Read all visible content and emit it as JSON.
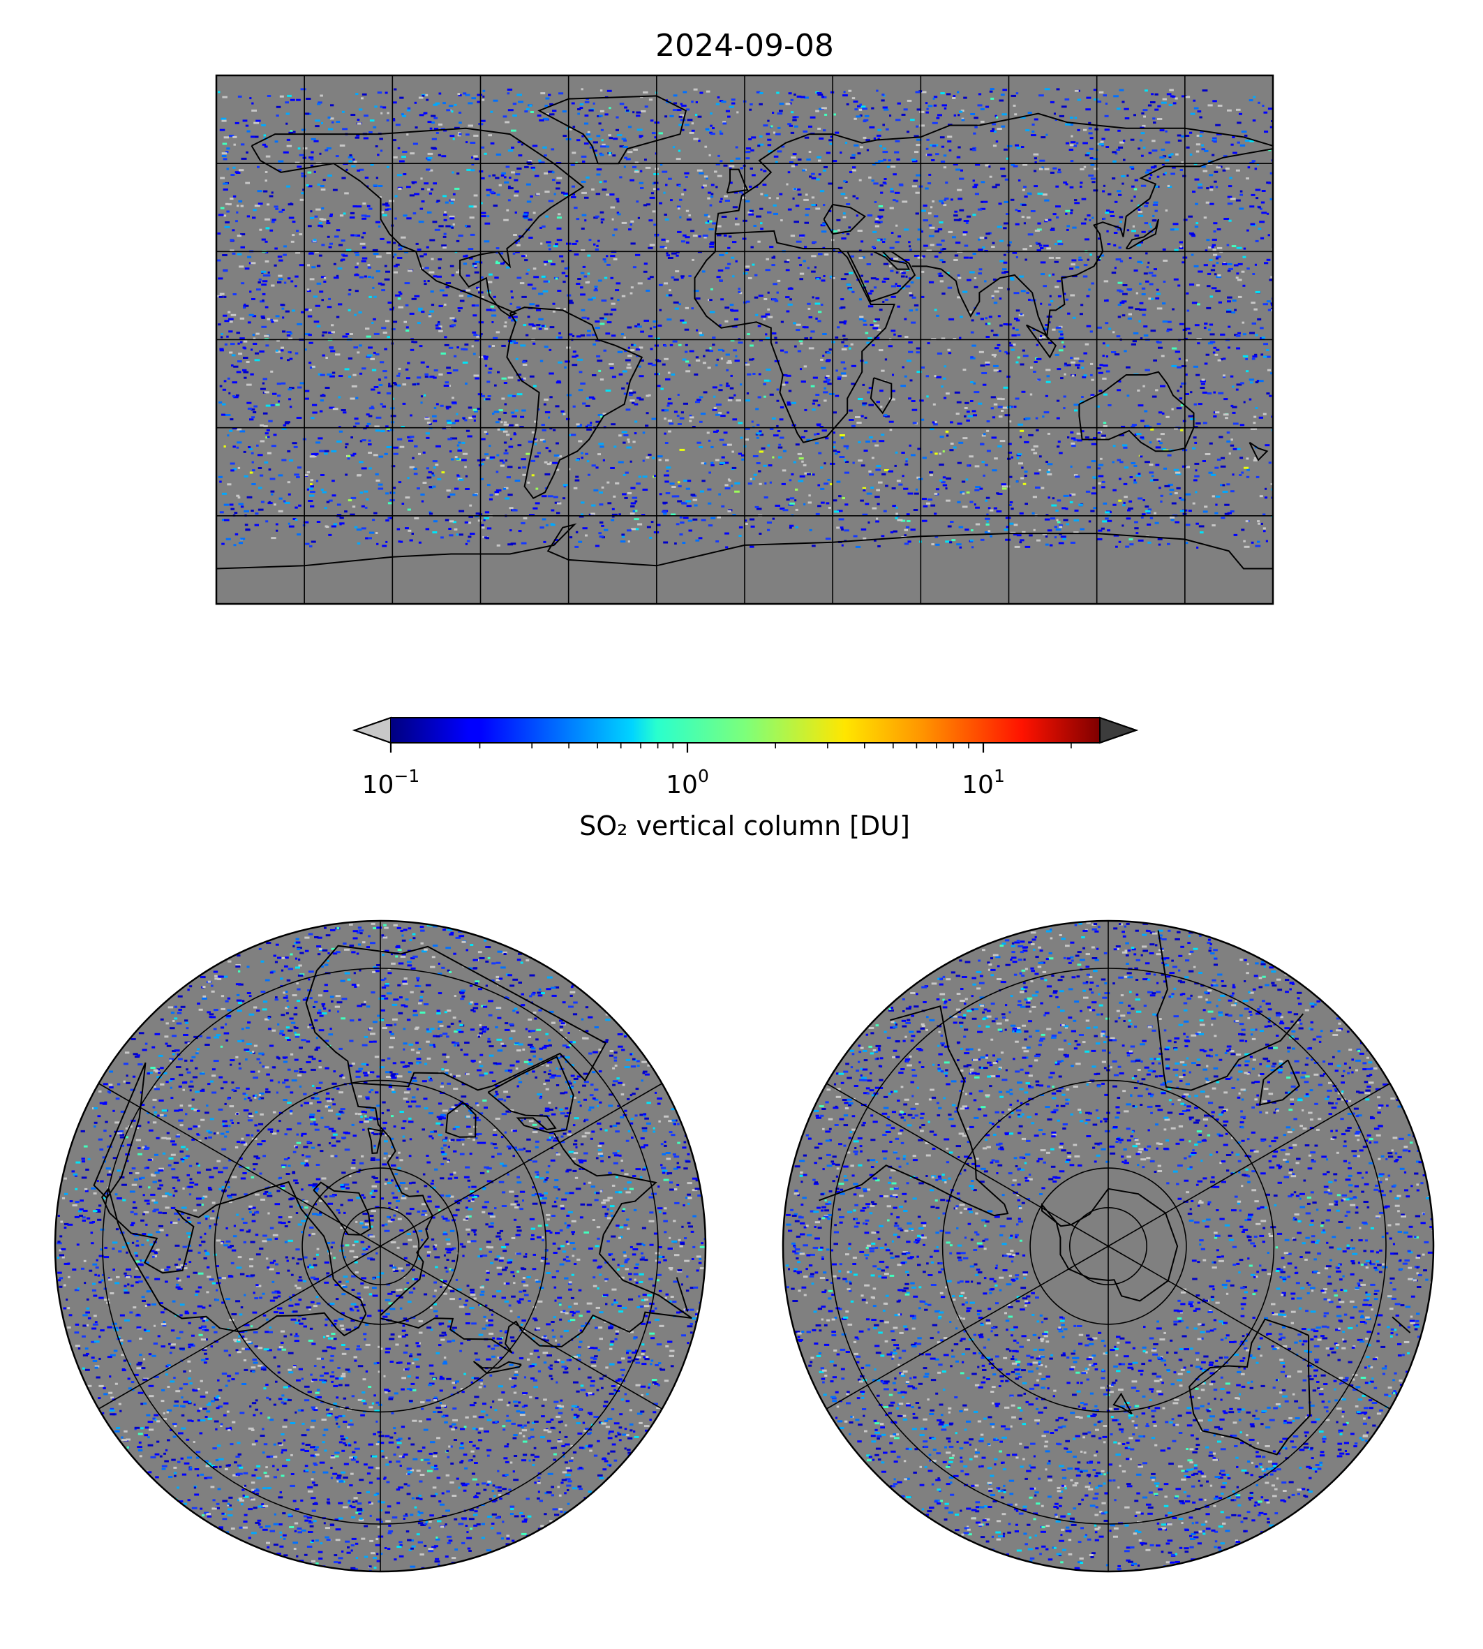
{
  "title": "2024-09-08",
  "colormap": {
    "name": "jet",
    "scale": "log",
    "range": [
      0.1,
      25
    ],
    "extend": "both",
    "under_color": "#c8c8c8",
    "over_color": "#3c3c3c",
    "ticks": [
      {
        "value": 0.1,
        "base": "10",
        "exponent": "−1"
      },
      {
        "value": 1,
        "base": "10",
        "exponent": "0"
      },
      {
        "value": 10,
        "base": "10",
        "exponent": "1"
      }
    ],
    "label": "SO₂ vertical column [DU]"
  },
  "background_color": "#808080",
  "global_map": {
    "projection": "plate-carree",
    "graticule": true,
    "coastlines": true
  },
  "north_polar_map": {
    "projection": "north-polar-stereographic",
    "graticule": true,
    "coastlines": true
  },
  "south_polar_map": {
    "projection": "south-polar-stereographic",
    "graticule": true,
    "coastlines": true
  }
}
